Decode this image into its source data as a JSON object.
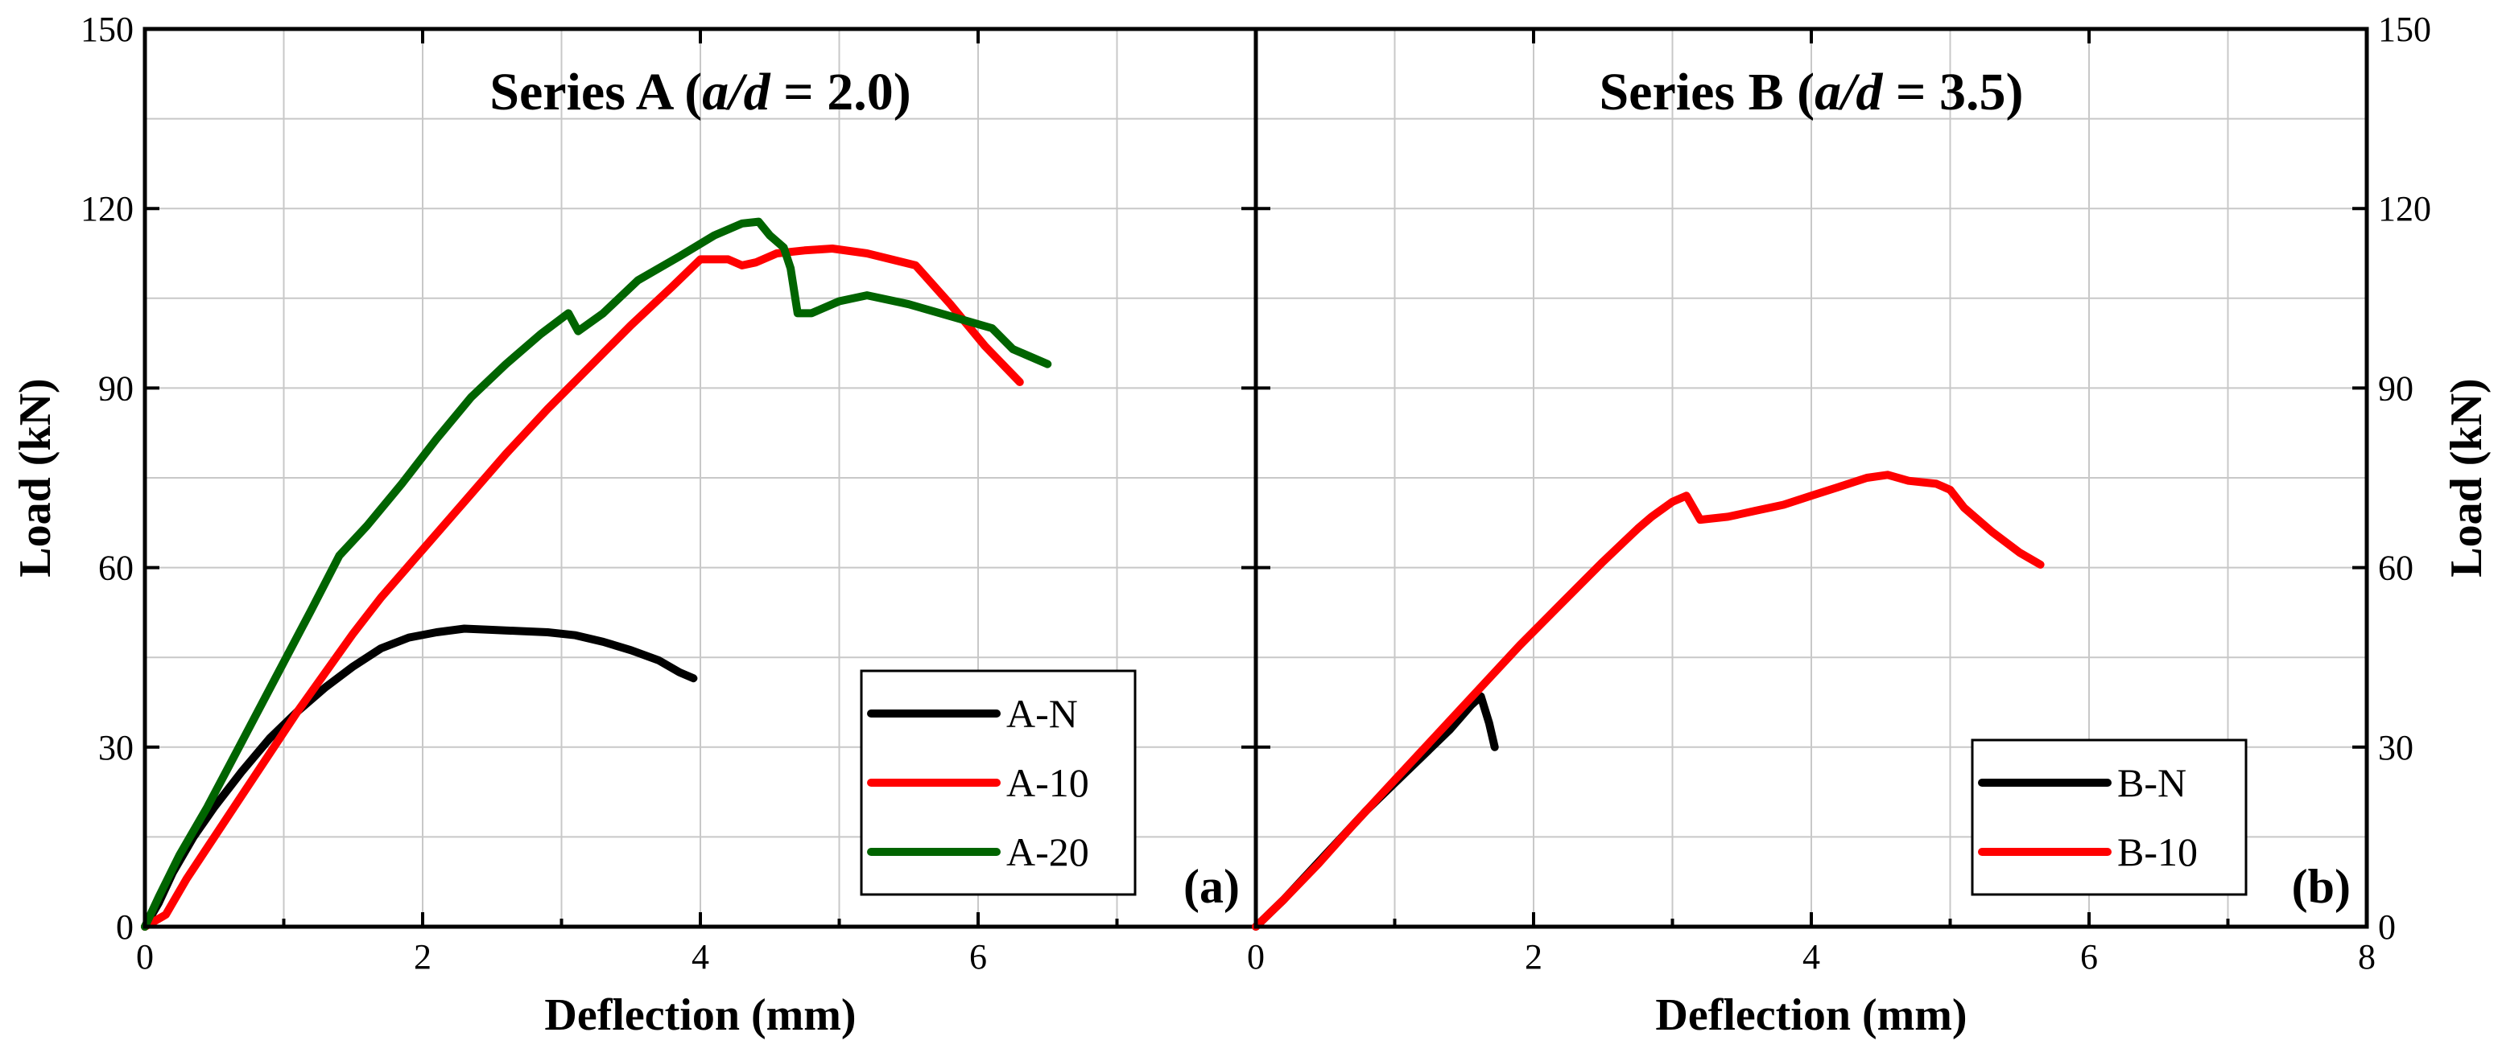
{
  "chart_data": [
    {
      "type": "line",
      "panel_label": "(a)",
      "title_parts": [
        {
          "text": "Series A (",
          "italic": false
        },
        {
          "text": "a/d",
          "italic": true
        },
        {
          "text": " = 2.0)",
          "italic": false
        }
      ],
      "xlabel": "Deflection (mm)",
      "ylabel": "Load (kN)",
      "xlim": [
        0,
        8
      ],
      "ylim": [
        0,
        150
      ],
      "xticks": [
        0,
        2,
        4,
        6
      ],
      "yticks": [
        0,
        30,
        60,
        90,
        120,
        150
      ],
      "grid": true,
      "legend_position": "bottom-right",
      "series": [
        {
          "name": "A-N",
          "color": "#000000",
          "x": [
            0,
            0.1,
            0.2,
            0.35,
            0.5,
            0.7,
            0.9,
            1.1,
            1.3,
            1.5,
            1.7,
            1.9,
            2.1,
            2.3,
            2.5,
            2.7,
            2.9,
            3.1,
            3.3,
            3.5,
            3.7,
            3.85,
            3.95
          ],
          "y": [
            0,
            4,
            9,
            15,
            20,
            26,
            31.5,
            36,
            40,
            43.5,
            46.5,
            48.3,
            49.2,
            49.8,
            49.6,
            49.4,
            49.2,
            48.7,
            47.6,
            46.2,
            44.5,
            42.5,
            41.5
          ]
        },
        {
          "name": "A-10",
          "color": "#ff0000",
          "x": [
            0,
            0.15,
            0.3,
            0.5,
            0.7,
            0.9,
            1.1,
            1.3,
            1.5,
            1.7,
            2.0,
            2.3,
            2.6,
            2.9,
            3.2,
            3.5,
            3.8,
            4.0,
            4.2,
            4.3,
            4.4,
            4.55,
            4.75,
            4.95,
            5.2,
            5.55,
            5.8,
            6.05,
            6.3
          ],
          "y": [
            0,
            2,
            8,
            15,
            22,
            29,
            36,
            42.5,
            49,
            55,
            63,
            71,
            79,
            86.5,
            93.5,
            100.5,
            107,
            111.5,
            111.5,
            110.5,
            111,
            112.5,
            113,
            113.3,
            112.5,
            110.5,
            104,
            97,
            91
          ]
        },
        {
          "name": "A-20",
          "color": "#006400",
          "x": [
            0,
            0.1,
            0.25,
            0.45,
            0.7,
            0.95,
            1.2,
            1.4,
            1.6,
            1.85,
            2.1,
            2.35,
            2.6,
            2.85,
            3.05,
            3.12,
            3.3,
            3.55,
            3.85,
            4.1,
            4.3,
            4.42,
            4.5,
            4.6,
            4.65,
            4.7,
            4.8,
            5.0,
            5.2,
            5.5,
            5.8,
            6.1,
            6.25,
            6.5
          ],
          "y": [
            0,
            5,
            12,
            20,
            31,
            42,
            53,
            62,
            67,
            74,
            81.5,
            88.5,
            94,
            99,
            102.5,
            99.5,
            102.5,
            108,
            112,
            115.5,
            117.5,
            117.8,
            115.5,
            113.5,
            110,
            102.5,
            102.5,
            104.5,
            105.5,
            104,
            102,
            100,
            96.5,
            94
          ]
        }
      ]
    },
    {
      "type": "line",
      "panel_label": "(b)",
      "title_parts": [
        {
          "text": "Series B (",
          "italic": false
        },
        {
          "text": "a/d",
          "italic": true
        },
        {
          "text": " = 3.5)",
          "italic": false
        }
      ],
      "xlabel": "Deflection (mm)",
      "ylabel": "Load (kN)",
      "xlim": [
        0,
        8
      ],
      "ylim": [
        0,
        150
      ],
      "xticks": [
        0,
        2,
        4,
        6,
        8
      ],
      "yticks": [
        0,
        30,
        60,
        90,
        120,
        150
      ],
      "grid": true,
      "legend_position": "bottom-right",
      "series": [
        {
          "name": "B-N",
          "color": "#000000",
          "x": [
            0,
            0.2,
            0.4,
            0.6,
            0.8,
            1.0,
            1.2,
            1.4,
            1.55,
            1.62,
            1.68,
            1.72
          ],
          "y": [
            0,
            4.5,
            9.5,
            14.5,
            19.5,
            24,
            28.5,
            33,
            37,
            38.5,
            34,
            30
          ]
        },
        {
          "name": "B-10",
          "color": "#ff0000",
          "x": [
            0,
            0.2,
            0.45,
            0.7,
            1.0,
            1.3,
            1.6,
            1.9,
            2.2,
            2.5,
            2.75,
            2.85,
            3.0,
            3.1,
            3.2,
            3.4,
            3.6,
            3.8,
            4.0,
            4.2,
            4.4,
            4.55,
            4.7,
            4.9,
            5.0,
            5.1,
            5.3,
            5.5,
            5.65
          ],
          "y": [
            0,
            4.5,
            10.5,
            17,
            24.5,
            32,
            39.5,
            47,
            54,
            61,
            66.5,
            68.5,
            71,
            72,
            68,
            68.5,
            69.5,
            70.5,
            72,
            73.5,
            75,
            75.5,
            74.5,
            74,
            73,
            70,
            66,
            62.5,
            60.5
          ]
        }
      ]
    }
  ]
}
